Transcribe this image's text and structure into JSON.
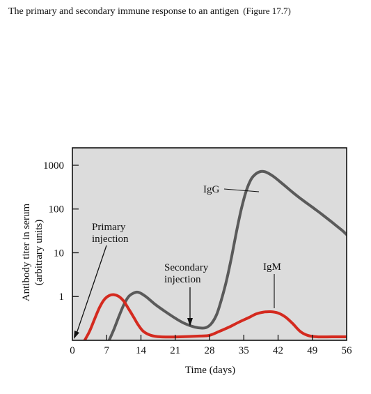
{
  "header": {
    "title": "The primary and secondary immune response to an antigen",
    "figure": "(Figure 17.7)"
  },
  "chart_data": {
    "type": "line",
    "title": "",
    "xlabel": "Time (days)",
    "ylabel": "Antibody titer in serum",
    "ylabel2": "(arbitrary units)",
    "xlim": [
      0,
      56
    ],
    "ylog": true,
    "ylim": [
      0.1,
      2500
    ],
    "xticks": [
      0,
      7,
      14,
      21,
      28,
      35,
      42,
      49,
      56
    ],
    "yticks": [
      1,
      10,
      100,
      1000
    ],
    "ytick_labels": [
      "1",
      "10",
      "100",
      "1000"
    ],
    "background": "#dcdcdc",
    "series": [
      {
        "name": "IgG",
        "color": "#5a5a5a",
        "points": [
          [
            7.5,
            0.1
          ],
          [
            8.5,
            0.18
          ],
          [
            9.5,
            0.35
          ],
          [
            10.5,
            0.65
          ],
          [
            11.5,
            1.0
          ],
          [
            12.5,
            1.2
          ],
          [
            13.5,
            1.25
          ],
          [
            15,
            1.0
          ],
          [
            17,
            0.65
          ],
          [
            19,
            0.45
          ],
          [
            21,
            0.32
          ],
          [
            23,
            0.24
          ],
          [
            25,
            0.2
          ],
          [
            26.5,
            0.19
          ],
          [
            27.5,
            0.2
          ],
          [
            28.5,
            0.25
          ],
          [
            29.5,
            0.4
          ],
          [
            30.5,
            0.9
          ],
          [
            31.5,
            2.4
          ],
          [
            32.5,
            8
          ],
          [
            33.5,
            30
          ],
          [
            34.5,
            100
          ],
          [
            35.5,
            260
          ],
          [
            36.5,
            480
          ],
          [
            37.5,
            640
          ],
          [
            38.5,
            720
          ],
          [
            39.5,
            700
          ],
          [
            41,
            560
          ],
          [
            43,
            370
          ],
          [
            45,
            240
          ],
          [
            47,
            160
          ],
          [
            49,
            110
          ],
          [
            51,
            75
          ],
          [
            53,
            50
          ],
          [
            55,
            33
          ],
          [
            56,
            26
          ]
        ]
      },
      {
        "name": "IgM",
        "color": "#d42a1f",
        "points": [
          [
            2.5,
            0.1
          ],
          [
            3.5,
            0.16
          ],
          [
            4.5,
            0.3
          ],
          [
            5.5,
            0.55
          ],
          [
            6.5,
            0.85
          ],
          [
            7.5,
            1.05
          ],
          [
            8.5,
            1.1
          ],
          [
            9.5,
            1.0
          ],
          [
            10.5,
            0.78
          ],
          [
            11.5,
            0.52
          ],
          [
            12.5,
            0.34
          ],
          [
            13.5,
            0.22
          ],
          [
            14.5,
            0.16
          ],
          [
            16,
            0.13
          ],
          [
            18,
            0.12
          ],
          [
            22,
            0.12
          ],
          [
            26,
            0.125
          ],
          [
            28,
            0.13
          ],
          [
            30,
            0.16
          ],
          [
            32,
            0.2
          ],
          [
            34,
            0.26
          ],
          [
            36,
            0.33
          ],
          [
            37.5,
            0.4
          ],
          [
            39,
            0.44
          ],
          [
            40.5,
            0.45
          ],
          [
            42,
            0.42
          ],
          [
            43.5,
            0.34
          ],
          [
            45,
            0.24
          ],
          [
            46.5,
            0.16
          ],
          [
            48,
            0.13
          ],
          [
            50,
            0.12
          ],
          [
            53,
            0.12
          ],
          [
            56,
            0.12
          ]
        ]
      }
    ],
    "annotations": [
      {
        "text": "Primary",
        "text2": "injection",
        "at_x": 0
      },
      {
        "text": "Secondary",
        "text2": "injection",
        "at_x": 24.5
      },
      {
        "text": "IgG"
      },
      {
        "text": "IgM"
      }
    ]
  }
}
